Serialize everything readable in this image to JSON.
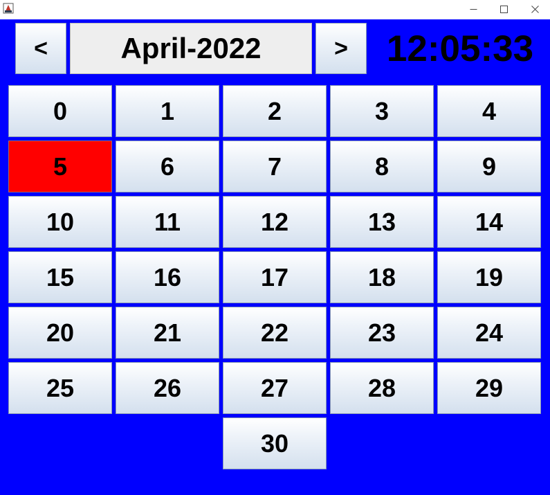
{
  "header": {
    "prev_label": "<",
    "next_label": ">",
    "month_year": "April-2022",
    "time": "12:05:33"
  },
  "window": {
    "minimize_glyph": "—",
    "maximize_glyph": "☐",
    "close_glyph": "✕"
  },
  "colors": {
    "background": "#0000ff",
    "selected_day": "#ff0000"
  },
  "days": [
    "0",
    "1",
    "2",
    "3",
    "4",
    "5",
    "6",
    "7",
    "8",
    "9",
    "10",
    "11",
    "12",
    "13",
    "14",
    "15",
    "16",
    "17",
    "18",
    "19",
    "20",
    "21",
    "22",
    "23",
    "24",
    "25",
    "26",
    "27",
    "28",
    "29",
    "30"
  ],
  "selected_day": "5"
}
